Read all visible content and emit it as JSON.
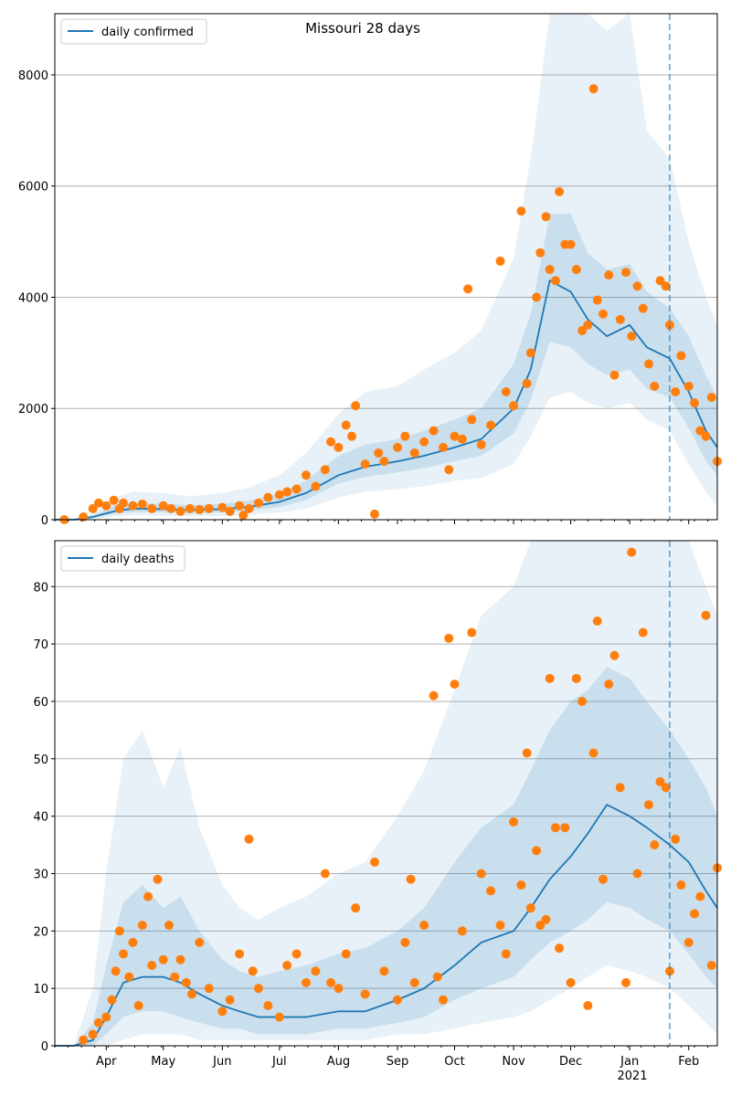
{
  "chart_data": [
    {
      "type": "line",
      "title": "Missouri 28 days",
      "xlabel": "",
      "ylabel": "",
      "x_range": [
        "2020-03-05",
        "2021-02-16"
      ],
      "ylim": [
        0,
        9100
      ],
      "yticks": [
        0,
        2000,
        4000,
        6000,
        8000
      ],
      "grid": "horizontal",
      "legend": {
        "placement": "top-left",
        "label": "daily confirmed"
      },
      "forecast_start": "2021-01-22",
      "series_model": {
        "name": "daily confirmed",
        "x": [
          "2020-03-05",
          "2020-03-15",
          "2020-03-25",
          "2020-04-05",
          "2020-04-15",
          "2020-05-01",
          "2020-05-15",
          "2020-06-01",
          "2020-06-15",
          "2020-07-01",
          "2020-07-15",
          "2020-08-01",
          "2020-08-15",
          "2020-09-01",
          "2020-09-15",
          "2020-10-01",
          "2020-10-15",
          "2020-11-01",
          "2020-11-10",
          "2020-11-20",
          "2020-12-01",
          "2020-12-10",
          "2020-12-20",
          "2021-01-01",
          "2021-01-10",
          "2021-01-22",
          "2021-02-01",
          "2021-02-10",
          "2021-02-16"
        ],
        "y": [
          0,
          0,
          50,
          150,
          200,
          190,
          170,
          190,
          230,
          320,
          480,
          800,
          950,
          1050,
          1150,
          1300,
          1450,
          2000,
          2700,
          4300,
          4100,
          3600,
          3300,
          3500,
          3100,
          2900,
          2300,
          1600,
          1300
        ]
      },
      "band_outer": {
        "lower": [
          0,
          0,
          10,
          60,
          80,
          70,
          60,
          70,
          90,
          130,
          200,
          400,
          500,
          550,
          600,
          700,
          750,
          1000,
          1500,
          2200,
          2300,
          2100,
          2000,
          2100,
          1800,
          1600,
          1000,
          500,
          250
        ],
        "upper": [
          0,
          0,
          120,
          400,
          500,
          480,
          420,
          480,
          580,
          800,
          1200,
          1900,
          2300,
          2400,
          2700,
          3000,
          3400,
          4700,
          6500,
          9100,
          9100,
          9100,
          8800,
          9100,
          7000,
          6500,
          5000,
          4000,
          3500
        ]
      },
      "band_inner": {
        "lower": [
          0,
          0,
          30,
          100,
          140,
          130,
          110,
          130,
          160,
          230,
          350,
          650,
          770,
          850,
          930,
          1050,
          1150,
          1550,
          2150,
          3200,
          3100,
          2800,
          2600,
          2700,
          2350,
          2200,
          1650,
          1050,
          800
        ],
        "upper": [
          0,
          0,
          80,
          250,
          300,
          290,
          260,
          290,
          340,
          470,
          700,
          1150,
          1350,
          1450,
          1600,
          1800,
          2000,
          2800,
          3700,
          5500,
          5500,
          4800,
          4500,
          4600,
          4100,
          3800,
          3300,
          2600,
          2200
        ]
      },
      "observed": {
        "x": [
          "2020-03-10",
          "2020-03-20",
          "2020-03-25",
          "2020-03-28",
          "2020-04-01",
          "2020-04-05",
          "2020-04-08",
          "2020-04-10",
          "2020-04-15",
          "2020-04-20",
          "2020-04-25",
          "2020-05-01",
          "2020-05-05",
          "2020-05-10",
          "2020-05-15",
          "2020-05-20",
          "2020-05-25",
          "2020-06-01",
          "2020-06-05",
          "2020-06-10",
          "2020-06-12",
          "2020-06-15",
          "2020-06-20",
          "2020-06-25",
          "2020-07-01",
          "2020-07-05",
          "2020-07-10",
          "2020-07-15",
          "2020-07-20",
          "2020-07-25",
          "2020-07-28",
          "2020-08-01",
          "2020-08-05",
          "2020-08-08",
          "2020-08-10",
          "2020-08-15",
          "2020-08-20",
          "2020-08-22",
          "2020-08-25",
          "2020-09-01",
          "2020-09-05",
          "2020-09-10",
          "2020-09-15",
          "2020-09-20",
          "2020-09-25",
          "2020-09-28",
          "2020-10-01",
          "2020-10-05",
          "2020-10-08",
          "2020-10-10",
          "2020-10-15",
          "2020-10-20",
          "2020-10-25",
          "2020-10-28",
          "2020-11-01",
          "2020-11-05",
          "2020-11-08",
          "2020-11-10",
          "2020-11-13",
          "2020-11-15",
          "2020-11-18",
          "2020-11-20",
          "2020-11-23",
          "2020-11-25",
          "2020-11-28",
          "2020-12-01",
          "2020-12-04",
          "2020-12-07",
          "2020-12-10",
          "2020-12-13",
          "2020-12-15",
          "2020-12-18",
          "2020-12-21",
          "2020-12-24",
          "2020-12-27",
          "2020-12-30",
          "2021-01-02",
          "2021-01-05",
          "2021-01-08",
          "2021-01-11",
          "2021-01-14",
          "2021-01-17",
          "2021-01-20",
          "2021-01-22",
          "2021-01-25",
          "2021-01-28",
          "2021-02-01",
          "2021-02-04",
          "2021-02-07",
          "2021-02-10",
          "2021-02-13",
          "2021-02-16"
        ],
        "y": [
          0,
          50,
          200,
          300,
          250,
          350,
          200,
          300,
          250,
          280,
          200,
          250,
          200,
          150,
          200,
          180,
          200,
          220,
          150,
          250,
          80,
          200,
          300,
          400,
          450,
          500,
          550,
          800,
          600,
          900,
          1400,
          1300,
          1700,
          1500,
          2050,
          1000,
          100,
          1200,
          1050,
          1300,
          1500,
          1200,
          1400,
          1600,
          1300,
          900,
          1500,
          1450,
          4150,
          1800,
          1350,
          1700,
          4650,
          2300,
          2050,
          5550,
          2450,
          3000,
          4000,
          4800,
          5450,
          4500,
          4300,
          5900,
          4950,
          4950,
          4500,
          3400,
          3500,
          7750,
          3950,
          3700,
          4400,
          2600,
          3600,
          4450,
          3300,
          4200,
          3800,
          2800,
          2400,
          4300,
          4200,
          3500,
          2300,
          2950,
          2400,
          2100,
          1600,
          1500,
          2200,
          1050
        ]
      }
    },
    {
      "type": "line",
      "title": "",
      "xlabel": "",
      "ylabel": "",
      "x_range": [
        "2020-03-05",
        "2021-02-16"
      ],
      "ylim": [
        0,
        88
      ],
      "yticks": [
        0,
        10,
        20,
        30,
        40,
        50,
        60,
        70,
        80
      ],
      "grid": "horizontal",
      "legend": {
        "placement": "top-left",
        "label": "daily deaths"
      },
      "forecast_start": "2021-01-22",
      "x_tick_labels": [
        "Apr",
        "May",
        "Jun",
        "Jul",
        "Aug",
        "Sep",
        "Oct",
        "Nov",
        "Dec",
        "Jan",
        "Feb"
      ],
      "x_tick_dates": [
        "2020-04-01",
        "2020-05-01",
        "2020-06-01",
        "2020-07-01",
        "2020-08-01",
        "2020-09-01",
        "2020-10-01",
        "2020-11-01",
        "2020-12-01",
        "2021-01-01",
        "2021-02-01"
      ],
      "year_label": "2021",
      "series_model": {
        "name": "daily deaths",
        "x": [
          "2020-03-05",
          "2020-03-15",
          "2020-03-25",
          "2020-04-01",
          "2020-04-10",
          "2020-04-20",
          "2020-05-01",
          "2020-05-10",
          "2020-05-20",
          "2020-06-01",
          "2020-06-10",
          "2020-06-20",
          "2020-07-01",
          "2020-07-15",
          "2020-08-01",
          "2020-08-15",
          "2020-09-01",
          "2020-09-15",
          "2020-10-01",
          "2020-10-15",
          "2020-11-01",
          "2020-11-10",
          "2020-11-20",
          "2020-12-01",
          "2020-12-10",
          "2020-12-20",
          "2021-01-01",
          "2021-01-10",
          "2021-01-22",
          "2021-02-01",
          "2021-02-10",
          "2021-02-16"
        ],
        "y": [
          0,
          0,
          1,
          5,
          11,
          12,
          12,
          11,
          9,
          7,
          6,
          5,
          5,
          5,
          6,
          6,
          8,
          10,
          14,
          18,
          20,
          24,
          29,
          33,
          37,
          42,
          40,
          38,
          35,
          32,
          27,
          24
        ]
      },
      "band_outer": {
        "lower": [
          0,
          0,
          0,
          0,
          1,
          2,
          2,
          2,
          1,
          1,
          1,
          1,
          1,
          1,
          1,
          1,
          2,
          2,
          3,
          4,
          5,
          6,
          8,
          10,
          12,
          14,
          13,
          12,
          10,
          7,
          4,
          2
        ],
        "upper": [
          0,
          0,
          10,
          30,
          50,
          55,
          45,
          52,
          38,
          28,
          24,
          22,
          24,
          26,
          30,
          32,
          40,
          48,
          62,
          75,
          80,
          88,
          88,
          88,
          88,
          88,
          88,
          88,
          88,
          88,
          80,
          75
        ]
      },
      "band_inner": {
        "lower": [
          0,
          0,
          0,
          2,
          5,
          6,
          6,
          5,
          4,
          3,
          3,
          2,
          2,
          2,
          3,
          3,
          4,
          5,
          8,
          10,
          12,
          15,
          18,
          20,
          22,
          25,
          24,
          22,
          20,
          16,
          12,
          10
        ],
        "upper": [
          0,
          0,
          4,
          14,
          25,
          28,
          24,
          26,
          20,
          15,
          13,
          12,
          13,
          14,
          16,
          17,
          20,
          24,
          32,
          38,
          42,
          48,
          55,
          60,
          62,
          66,
          64,
          60,
          55,
          50,
          45,
          40
        ]
      },
      "observed": {
        "x": [
          "2020-03-20",
          "2020-03-25",
          "2020-03-28",
          "2020-04-01",
          "2020-04-04",
          "2020-04-06",
          "2020-04-08",
          "2020-04-10",
          "2020-04-13",
          "2020-04-15",
          "2020-04-18",
          "2020-04-20",
          "2020-04-23",
          "2020-04-25",
          "2020-04-28",
          "2020-05-01",
          "2020-05-04",
          "2020-05-07",
          "2020-05-10",
          "2020-05-13",
          "2020-05-16",
          "2020-05-20",
          "2020-05-25",
          "2020-06-01",
          "2020-06-05",
          "2020-06-10",
          "2020-06-15",
          "2020-06-17",
          "2020-06-20",
          "2020-06-25",
          "2020-07-01",
          "2020-07-05",
          "2020-07-10",
          "2020-07-15",
          "2020-07-20",
          "2020-07-25",
          "2020-07-28",
          "2020-08-01",
          "2020-08-05",
          "2020-08-10",
          "2020-08-15",
          "2020-08-20",
          "2020-08-25",
          "2020-09-01",
          "2020-09-05",
          "2020-09-08",
          "2020-09-10",
          "2020-09-15",
          "2020-09-20",
          "2020-09-22",
          "2020-09-25",
          "2020-09-28",
          "2020-10-01",
          "2020-10-05",
          "2020-10-10",
          "2020-10-15",
          "2020-10-20",
          "2020-10-25",
          "2020-10-28",
          "2020-11-01",
          "2020-11-05",
          "2020-11-08",
          "2020-11-10",
          "2020-11-13",
          "2020-11-15",
          "2020-11-18",
          "2020-11-20",
          "2020-11-23",
          "2020-11-25",
          "2020-11-28",
          "2020-12-01",
          "2020-12-04",
          "2020-12-07",
          "2020-12-10",
          "2020-12-13",
          "2020-12-15",
          "2020-12-18",
          "2020-12-21",
          "2020-12-24",
          "2020-12-27",
          "2020-12-30",
          "2021-01-02",
          "2021-01-05",
          "2021-01-08",
          "2021-01-11",
          "2021-01-14",
          "2021-01-17",
          "2021-01-20",
          "2021-01-22",
          "2021-01-25",
          "2021-01-28",
          "2021-02-01",
          "2021-02-04",
          "2021-02-07",
          "2021-02-10",
          "2021-02-13",
          "2021-02-16"
        ],
        "y": [
          1,
          2,
          4,
          5,
          8,
          13,
          20,
          16,
          12,
          18,
          7,
          21,
          26,
          14,
          29,
          15,
          21,
          12,
          15,
          11,
          9,
          18,
          10,
          6,
          8,
          16,
          36,
          13,
          10,
          7,
          5,
          14,
          16,
          11,
          13,
          30,
          11,
          10,
          16,
          24,
          9,
          32,
          13,
          8,
          18,
          29,
          11,
          21,
          61,
          12,
          8,
          71,
          63,
          20,
          72,
          30,
          27,
          21,
          16,
          39,
          28,
          51,
          24,
          34,
          21,
          22,
          64,
          38,
          17,
          38,
          11,
          64,
          60,
          7,
          51,
          74,
          29,
          63,
          68,
          45,
          11,
          86,
          30,
          72,
          42,
          35,
          46,
          45,
          13,
          36,
          28,
          18,
          23,
          26,
          75,
          14,
          31
        ]
      }
    }
  ]
}
